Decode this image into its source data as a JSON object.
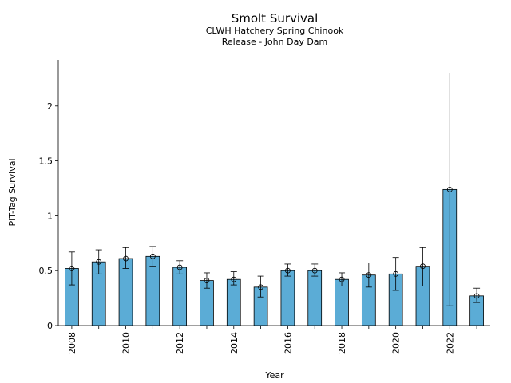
{
  "chart_data": {
    "type": "bar",
    "title": "Smolt Survival",
    "subtitle_lines": [
      "CLWH Hatchery Spring Chinook",
      "Release - John Day Dam"
    ],
    "xlabel": "Year",
    "ylabel": "PIT-Tag Survival",
    "categories": [
      2008,
      2009,
      2010,
      2011,
      2012,
      2013,
      2014,
      2015,
      2016,
      2017,
      2018,
      2019,
      2020,
      2021,
      2022,
      2023
    ],
    "values": [
      0.52,
      0.58,
      0.61,
      0.63,
      0.53,
      0.41,
      0.42,
      0.35,
      0.5,
      0.5,
      0.42,
      0.46,
      0.47,
      0.54,
      1.24,
      0.27
    ],
    "error_low": [
      0.37,
      0.47,
      0.52,
      0.54,
      0.47,
      0.34,
      0.37,
      0.26,
      0.45,
      0.45,
      0.36,
      0.35,
      0.32,
      0.36,
      0.18,
      0.21
    ],
    "error_high": [
      0.67,
      0.69,
      0.71,
      0.72,
      0.59,
      0.48,
      0.49,
      0.45,
      0.56,
      0.56,
      0.48,
      0.57,
      0.62,
      0.71,
      2.3,
      0.34
    ],
    "ylim": [
      0,
      2.42
    ],
    "yticks": [
      0,
      0.5,
      1,
      1.5,
      2
    ],
    "ytick_labels": [
      "0",
      "0.5",
      "1",
      "1.5",
      "2"
    ],
    "xtick_labels": [
      "2008",
      "2010",
      "2012",
      "2014",
      "2016",
      "2018",
      "2020",
      "2022"
    ],
    "grid": false,
    "colors": {
      "bar": "#5bacd6",
      "edge": "#000000"
    }
  }
}
